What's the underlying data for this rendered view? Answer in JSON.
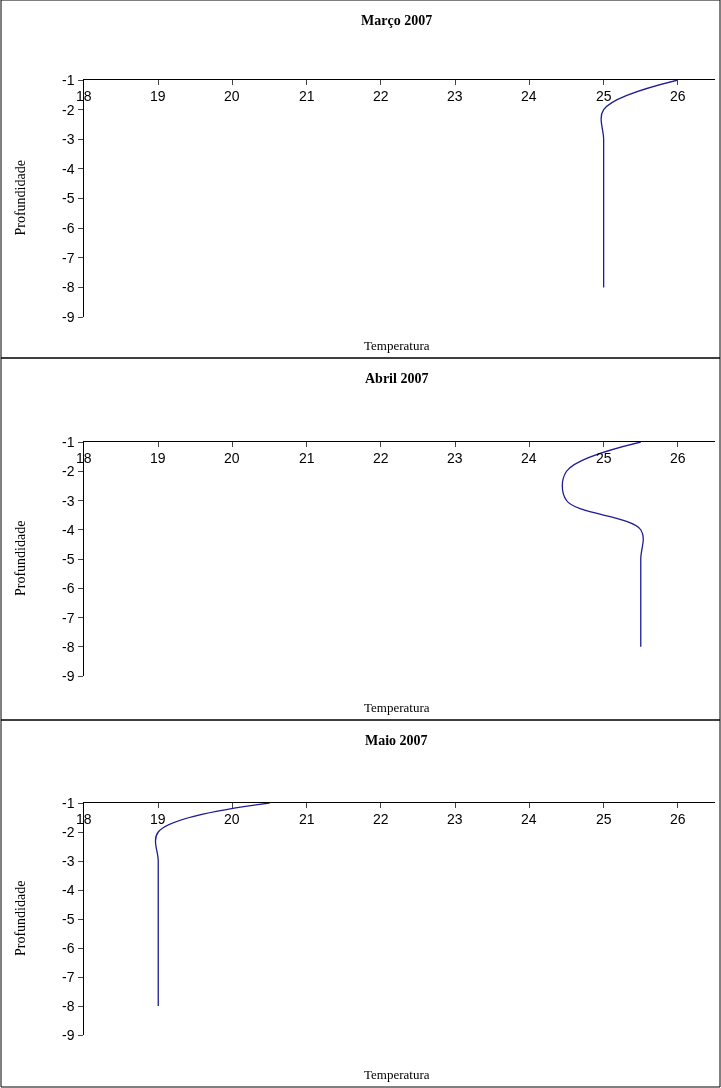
{
  "chart_data": [
    {
      "type": "line",
      "title": "Março 2007",
      "xlabel": "Temperatura",
      "ylabel": "Profundidade",
      "xlim": [
        18,
        26.5
      ],
      "xticks": [
        18,
        19,
        20,
        21,
        22,
        23,
        24,
        25,
        26
      ],
      "ylim": [
        -9,
        -1
      ],
      "yticks": [
        -1,
        -2,
        -3,
        -4,
        -5,
        -6,
        -7,
        -8,
        -9
      ],
      "series": [
        {
          "color": "#1c1c94",
          "x": [
            26,
            25,
            25,
            25,
            25,
            25,
            25,
            25
          ],
          "values": [
            -1,
            -2,
            -3,
            -4,
            -5,
            -6,
            -7,
            -8
          ]
        }
      ]
    },
    {
      "type": "line",
      "title": "Abril 2007",
      "xlabel": "Temperatura",
      "ylabel": "Profundidade",
      "xlim": [
        18,
        26.5
      ],
      "xticks": [
        18,
        19,
        20,
        21,
        22,
        23,
        24,
        25,
        26
      ],
      "ylim": [
        -9,
        -1
      ],
      "yticks": [
        -1,
        -2,
        -3,
        -4,
        -5,
        -6,
        -7,
        -8,
        -9
      ],
      "series": [
        {
          "color": "#1c1c94",
          "x": [
            25.5,
            24.5,
            24.5,
            25.5,
            25.5,
            25.5,
            25.5,
            25.5
          ],
          "values": [
            -1,
            -2,
            -3,
            -4,
            -5,
            -6,
            -7,
            -8
          ]
        }
      ]
    },
    {
      "type": "line",
      "title": "Maio 2007",
      "xlabel": "Temperatura",
      "ylabel": "Profundidade",
      "xlim": [
        18,
        26.5
      ],
      "xticks": [
        18,
        19,
        20,
        21,
        22,
        23,
        24,
        25,
        26
      ],
      "ylim": [
        -9,
        -1
      ],
      "yticks": [
        -1,
        -2,
        -3,
        -4,
        -5,
        -6,
        -7,
        -8,
        -9
      ],
      "series": [
        {
          "color": "#1c1c94",
          "x": [
            20.5,
            19,
            19,
            19,
            19,
            19,
            19,
            19
          ],
          "values": [
            -1,
            -2,
            -3,
            -4,
            -5,
            -6,
            -7,
            -8
          ]
        }
      ]
    }
  ]
}
